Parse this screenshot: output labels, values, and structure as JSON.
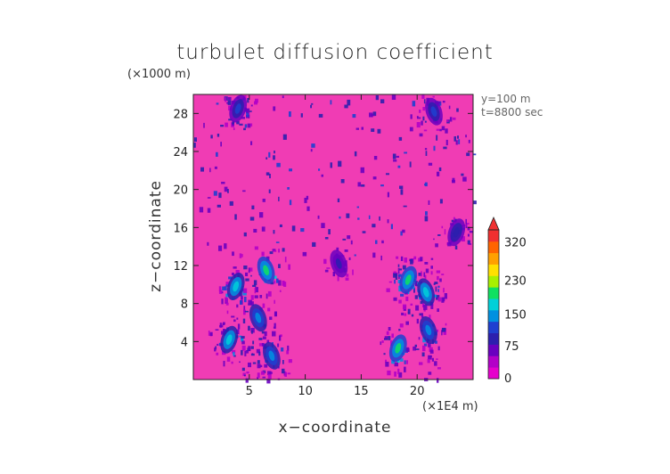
{
  "chart_data": {
    "type": "heatmap",
    "title": "turbulet diffusion coefficient",
    "xlabel": "x−coordinate",
    "ylabel": "z−coordinate",
    "x_unit": "(×1E4 m)",
    "y_unit": "(×1000 m)",
    "xlim": [
      0,
      25
    ],
    "ylim": [
      0,
      30
    ],
    "x_ticks": [
      5,
      10,
      15,
      20
    ],
    "y_ticks": [
      4,
      8,
      12,
      16,
      20,
      24,
      28
    ],
    "annotations": [
      "y=100 m",
      "t=8800 sec"
    ],
    "colorbar": {
      "tick_labels": [
        320,
        230,
        150,
        75,
        0
      ],
      "range": [
        0,
        350
      ],
      "extend": "max",
      "colors": [
        "#e600cc",
        "#b300c8",
        "#6a00c0",
        "#2c1fae",
        "#1f3fd0",
        "#0090e0",
        "#00d0d8",
        "#10e060",
        "#a8f000",
        "#ffe000",
        "#ffa000",
        "#ff6400",
        "#f03030"
      ],
      "background_color": "#f03cb4"
    },
    "field_description": "turbulent diffusion coefficient field at y=100 m; mostly low values (~0-40) with patches of 75-300 in two plumes near x=5-8 and x=18-22, z<13, and scattered filaments in upper region",
    "hotspots": [
      {
        "x": 6.5,
        "z": 11.5,
        "value": 200
      },
      {
        "x": 3.8,
        "z": 9.8,
        "value": 180
      },
      {
        "x": 5.8,
        "z": 6.5,
        "value": 160
      },
      {
        "x": 3.2,
        "z": 4.2,
        "value": 190
      },
      {
        "x": 7.0,
        "z": 2.5,
        "value": 170
      },
      {
        "x": 19.2,
        "z": 10.5,
        "value": 200
      },
      {
        "x": 20.8,
        "z": 9.2,
        "value": 190
      },
      {
        "x": 18.3,
        "z": 3.3,
        "value": 200
      },
      {
        "x": 21.0,
        "z": 5.2,
        "value": 150
      },
      {
        "x": 4.0,
        "z": 28.5,
        "value": 130
      },
      {
        "x": 21.5,
        "z": 28.2,
        "value": 140
      },
      {
        "x": 23.5,
        "z": 15.5,
        "value": 110
      },
      {
        "x": 13.0,
        "z": 12.2,
        "value": 100
      }
    ]
  }
}
